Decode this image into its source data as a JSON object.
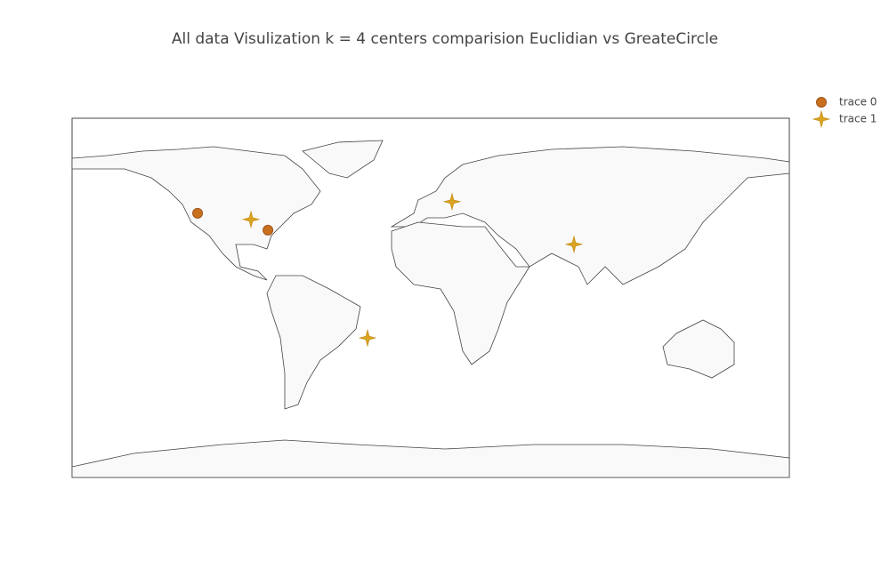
{
  "chart_data": {
    "type": "scattergeo",
    "title": "All data Visulization k = 4 centers comparision Euclidian vs GreateCircle",
    "projection": "equirectangular",
    "series": [
      {
        "name": "trace 0",
        "color": "#c8701e",
        "marker": "circle",
        "lon": [
          -117,
          -81.7
        ],
        "lat": [
          42.4,
          33.9
        ]
      },
      {
        "name": "trace 1",
        "color": "#daa520",
        "marker": "star",
        "lon": [
          -90.2,
          10.7,
          71.9,
          -31.7
        ],
        "lat": [
          39.3,
          48.2,
          26.8,
          -20.1
        ]
      }
    ]
  }
}
